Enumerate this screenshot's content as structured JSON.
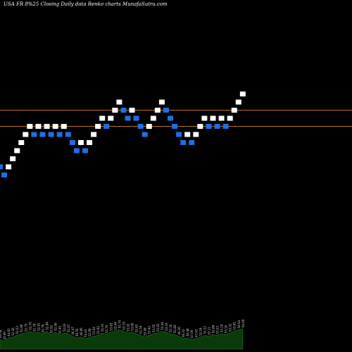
{
  "header": {
    "title": "USA FR 8%25  Closing Daily data  Renko  charts MunafaSutra.com"
  },
  "colors": {
    "background": "#000000",
    "up_brick": "#ffffff",
    "down_brick": "#1e6fe0",
    "level_line": "#b8731f",
    "volume_fill": "#0a3a0a",
    "volume_stroke": "#1f7a1f"
  },
  "chart_data": {
    "type": "renko",
    "level_lines": [
      2,
      0
    ],
    "bricks": [
      {
        "level": -5,
        "dir": "down"
      },
      {
        "level": -6,
        "dir": "down"
      },
      {
        "level": -5,
        "dir": "up"
      },
      {
        "level": -4,
        "dir": "up"
      },
      {
        "level": -3,
        "dir": "up"
      },
      {
        "level": -2,
        "dir": "up"
      },
      {
        "level": -1,
        "dir": "up"
      },
      {
        "level": 0,
        "dir": "up"
      },
      {
        "level": -1,
        "dir": "down"
      },
      {
        "level": 0,
        "dir": "up"
      },
      {
        "level": -1,
        "dir": "down"
      },
      {
        "level": 0,
        "dir": "up"
      },
      {
        "level": -1,
        "dir": "down"
      },
      {
        "level": 0,
        "dir": "up"
      },
      {
        "level": -1,
        "dir": "down"
      },
      {
        "level": 0,
        "dir": "up"
      },
      {
        "level": -1,
        "dir": "down"
      },
      {
        "level": -2,
        "dir": "down"
      },
      {
        "level": -3,
        "dir": "down"
      },
      {
        "level": -2,
        "dir": "up"
      },
      {
        "level": -3,
        "dir": "down"
      },
      {
        "level": -2,
        "dir": "up"
      },
      {
        "level": -1,
        "dir": "up"
      },
      {
        "level": 0,
        "dir": "up"
      },
      {
        "level": 1,
        "dir": "up"
      },
      {
        "level": 0,
        "dir": "down"
      },
      {
        "level": 1,
        "dir": "up"
      },
      {
        "level": 2,
        "dir": "up"
      },
      {
        "level": 3,
        "dir": "up"
      },
      {
        "level": 2,
        "dir": "down"
      },
      {
        "level": 1,
        "dir": "down"
      },
      {
        "level": 2,
        "dir": "up"
      },
      {
        "level": 1,
        "dir": "down"
      },
      {
        "level": 0,
        "dir": "down"
      },
      {
        "level": -1,
        "dir": "down"
      },
      {
        "level": 0,
        "dir": "up"
      },
      {
        "level": 1,
        "dir": "up"
      },
      {
        "level": 2,
        "dir": "up"
      },
      {
        "level": 3,
        "dir": "up"
      },
      {
        "level": 2,
        "dir": "down"
      },
      {
        "level": 1,
        "dir": "down"
      },
      {
        "level": 0,
        "dir": "down"
      },
      {
        "level": -1,
        "dir": "down"
      },
      {
        "level": -2,
        "dir": "down"
      },
      {
        "level": -1,
        "dir": "up"
      },
      {
        "level": -2,
        "dir": "down"
      },
      {
        "level": -1,
        "dir": "up"
      },
      {
        "level": 0,
        "dir": "up"
      },
      {
        "level": 1,
        "dir": "up"
      },
      {
        "level": 0,
        "dir": "down"
      },
      {
        "level": 1,
        "dir": "up"
      },
      {
        "level": 0,
        "dir": "down"
      },
      {
        "level": 1,
        "dir": "up"
      },
      {
        "level": 0,
        "dir": "down"
      },
      {
        "level": 1,
        "dir": "up"
      },
      {
        "level": 2,
        "dir": "up"
      },
      {
        "level": 3,
        "dir": "up"
      },
      {
        "level": 4,
        "dir": "up"
      }
    ],
    "volume": [
      12,
      10,
      14,
      15,
      17,
      19,
      20,
      22,
      20,
      21,
      19,
      22,
      18,
      21,
      17,
      20,
      19,
      16,
      14,
      15,
      13,
      14,
      16,
      17,
      20,
      18,
      21,
      22,
      24,
      22,
      20,
      21,
      19,
      17,
      15,
      17,
      19,
      20,
      22,
      21,
      19,
      18,
      16,
      13,
      14,
      12,
      13,
      15,
      17,
      16,
      18,
      17,
      19,
      18,
      20,
      22,
      24,
      25
    ],
    "volume_labels": [
      "43.58",
      "43.69",
      "44.63",
      "52.36",
      "52.53",
      "52.86",
      "52.75",
      "52.76",
      "52.79",
      "52.61",
      "52.76",
      "52.84",
      "52.92",
      "52.56",
      "52.45",
      "52.63",
      "52.47",
      "46.47",
      "46.55",
      "46.85",
      "52.43",
      "52.99",
      "53.54",
      "53.92",
      "52.91",
      "53.76",
      "53.63",
      "53.44",
      "53.74",
      "53.19",
      "53.02",
      "53.00",
      "52.62",
      "53.78",
      "53.06",
      "53.42",
      "53.55",
      "53.62",
      "53.44",
      "53.33",
      "53.35",
      "52.48",
      "46.26",
      "46.32",
      "46.48",
      "47.00",
      "47.43",
      "52.04",
      "52.22",
      "53.11",
      "52.88",
      "53.03",
      "53.19",
      "53.16",
      "53.52",
      "53.81",
      "54.04",
      "54.09"
    ]
  }
}
